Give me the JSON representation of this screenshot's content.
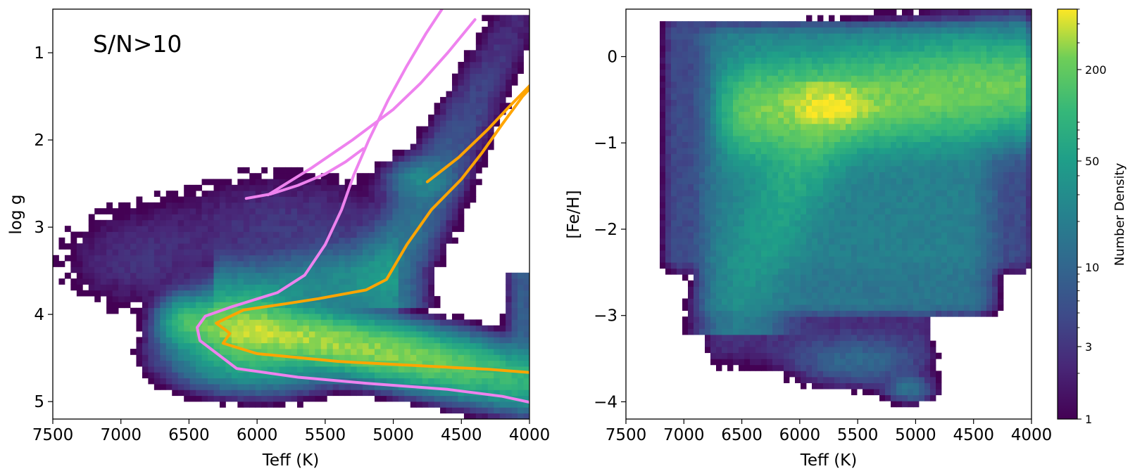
{
  "chart_data": [
    {
      "type": "heatmap",
      "title": "",
      "annotation": "S/N>10",
      "xlabel": "Teff (K)",
      "ylabel": "log g",
      "xlim": [
        7500,
        4000
      ],
      "ylim": [
        5.2,
        0.5
      ],
      "xticks": [
        7500,
        7000,
        6500,
        6000,
        5500,
        5000,
        4500,
        4000
      ],
      "xtick_labels": [
        "7500",
        "7000",
        "6500",
        "6000",
        "5500",
        "5000",
        "4500",
        "4000"
      ],
      "yticks": [
        1,
        2,
        3,
        4,
        5
      ],
      "ytick_labels": [
        "1",
        "2",
        "3",
        "4",
        "5"
      ],
      "density_features": {
        "main_sequence": {
          "teff_from": 6500,
          "teff_to": 4050,
          "logg_from": 4.1,
          "logg_to": 4.75,
          "peak_density": 300
        },
        "turnoff": {
          "teff": 6400,
          "logg": 4.2
        },
        "subgiant_branch": {
          "teff_from": 6000,
          "teff_to": 5050,
          "logg_from": 3.8,
          "logg_to": 3.55
        },
        "giant_branch": {
          "teff_from": 5050,
          "teff_to": 4100,
          "logg_from": 3.5,
          "logg_to": 0.6
        },
        "red_clump": {
          "teff": 4800,
          "logg": 2.45
        }
      },
      "series": [
        {
          "name": "violet isochrone",
          "color": "#ee82ee",
          "points": [
            [
              3960,
              5.02
            ],
            [
              4200,
              4.94
            ],
            [
              4600,
              4.86
            ],
            [
              5200,
              4.79
            ],
            [
              5700,
              4.72
            ],
            [
              6150,
              4.62
            ],
            [
              6420,
              4.3
            ],
            [
              6440,
              4.15
            ],
            [
              6380,
              4.02
            ],
            [
              6200,
              3.92
            ],
            [
              5850,
              3.75
            ],
            [
              5650,
              3.55
            ],
            [
              5500,
              3.2
            ],
            [
              5380,
              2.8
            ],
            [
              5290,
              2.4
            ],
            [
              5180,
              2.0
            ],
            [
              5040,
              1.55
            ],
            [
              4900,
              1.15
            ],
            [
              4760,
              0.78
            ],
            [
              4600,
              0.4
            ]
          ]
        },
        {
          "name": "violet horizontal branch",
          "color": "#ee82ee",
          "points": [
            [
              6080,
              2.67
            ],
            [
              5900,
              2.62
            ],
            [
              5700,
              2.52
            ],
            [
              5500,
              2.39
            ],
            [
              5350,
              2.25
            ],
            [
              5220,
              2.1
            ]
          ]
        },
        {
          "name": "violet upper branch",
          "color": "#ee82ee",
          "points": [
            [
              5920,
              2.63
            ],
            [
              5600,
              2.32
            ],
            [
              5300,
              2.0
            ],
            [
              5000,
              1.65
            ],
            [
              4800,
              1.35
            ],
            [
              4600,
              1.0
            ],
            [
              4400,
              0.62
            ]
          ]
        },
        {
          "name": "orange isochrone",
          "color": "#ffa500",
          "points": [
            [
              3960,
              4.67
            ],
            [
              4300,
              4.63
            ],
            [
              4800,
              4.59
            ],
            [
              5400,
              4.54
            ],
            [
              6000,
              4.45
            ],
            [
              6250,
              4.33
            ],
            [
              6200,
              4.22
            ],
            [
              6230,
              4.18
            ],
            [
              6300,
              4.1
            ],
            [
              6100,
              3.95
            ],
            [
              5800,
              3.88
            ],
            [
              5550,
              3.82
            ],
            [
              5200,
              3.72
            ],
            [
              5050,
              3.6
            ],
            [
              4900,
              3.2
            ],
            [
              4720,
              2.8
            ],
            [
              4500,
              2.45
            ],
            [
              4350,
              2.15
            ],
            [
              4200,
              1.82
            ],
            [
              4050,
              1.5
            ],
            [
              3960,
              1.35
            ]
          ]
        },
        {
          "name": "orange upper branch",
          "color": "#ffa500",
          "points": [
            [
              4750,
              2.48
            ],
            [
              4520,
              2.2
            ],
            [
              4300,
              1.87
            ],
            [
              4150,
              1.62
            ],
            [
              4000,
              1.38
            ],
            [
              3960,
              1.3
            ]
          ]
        }
      ]
    },
    {
      "type": "heatmap",
      "title": "",
      "xlabel": "Teff (K)",
      "ylabel": "[Fe/H]",
      "xlim": [
        7500,
        4000
      ],
      "ylim": [
        -4.2,
        0.55
      ],
      "xticks": [
        7500,
        7000,
        6500,
        6000,
        5500,
        5000,
        4500,
        4000
      ],
      "xtick_labels": [
        "7500",
        "7000",
        "6500",
        "6000",
        "5500",
        "5000",
        "4500",
        "4000"
      ],
      "yticks": [
        0,
        -1,
        -2,
        -3,
        -4
      ],
      "ytick_labels": [
        "0",
        "−1",
        "−2",
        "−3",
        "−4"
      ],
      "density_features": {
        "metal_rich_peak": {
          "teff": 5700,
          "feh": -0.6,
          "peak_density": 400
        },
        "metal_rich_band": {
          "teff_from": 6400,
          "teff_to": 4000,
          "feh_from": -0.2,
          "feh_to": -0.7
        },
        "metal_poor_tail": {
          "teff_from": 5800,
          "teff_to": 6500,
          "feh_from": -0.7,
          "feh_to": -2.8
        },
        "extreme_metal_poor_clump": {
          "teff": 5050,
          "feh": -3.85
        }
      }
    }
  ],
  "colorbar": {
    "label": "Number Density",
    "scale": "log",
    "range": [
      1,
      500
    ],
    "ticks": [
      1,
      3,
      10,
      50,
      200
    ],
    "tick_labels": [
      "1",
      "3",
      "10",
      "50",
      "200"
    ],
    "colormap": "viridis"
  }
}
